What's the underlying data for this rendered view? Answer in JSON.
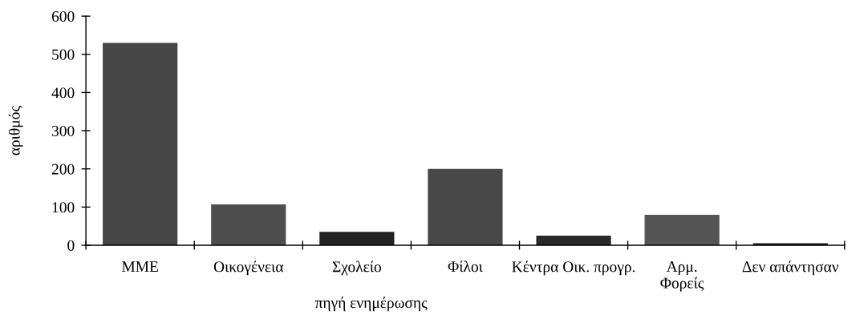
{
  "chart_data": {
    "type": "bar",
    "categories": [
      "ΜΜΕ",
      "Οικογένεια",
      "Σχολείο",
      "Φίλοι",
      "Κέντρα Οικ. προγρ.",
      "Αρμ.\nΦορείς",
      "Δεν απάντησαν"
    ],
    "values": [
      530,
      107,
      35,
      200,
      25,
      80,
      5
    ],
    "colors": [
      "#464646",
      "#4e4e4e",
      "#222222",
      "#484848",
      "#2a2a2a",
      "#555555",
      "#1a1a1a"
    ],
    "xlabel": "πηγή ενημέρωσης",
    "ylabel": "αριθμός",
    "ylim": [
      0,
      600
    ],
    "yticks": [
      0,
      100,
      200,
      300,
      400,
      500,
      600
    ]
  }
}
